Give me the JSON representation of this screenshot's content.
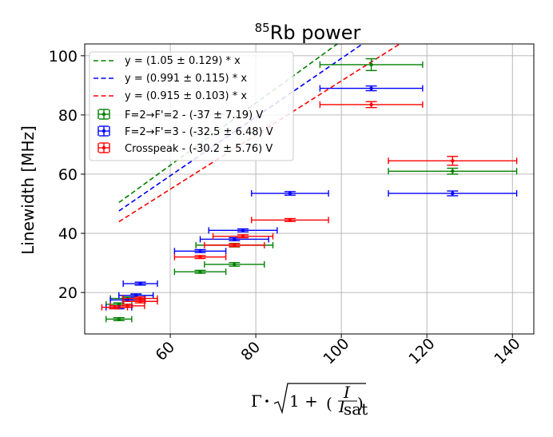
{
  "chart_data": {
    "type": "scatter",
    "title_super": "85",
    "title_main": "Rb power",
    "xlabel": "Γ · √(1 + (I/I_sat))",
    "ylabel": "Linewidth [MHz]",
    "xlim": [
      40,
      145
    ],
    "ylim": [
      6,
      104
    ],
    "x_ticks": [
      60,
      80,
      100,
      120,
      140
    ],
    "y_ticks": [
      20,
      40,
      60,
      80,
      100
    ],
    "grid": true,
    "legend_position": "top-left",
    "fits": [
      {
        "label": "y = (1.05 ± 0.129) * x",
        "slope": 1.05,
        "x_range": [
          48,
          126
        ],
        "color": "#008000"
      },
      {
        "label": "y = (0.991 ± 0.115) * x",
        "slope": 0.991,
        "x_range": [
          48,
          126
        ],
        "color": "#0000ff"
      },
      {
        "label": "y = (0.915 ± 0.103) * x",
        "slope": 0.915,
        "x_range": [
          48,
          126
        ],
        "color": "#ff0000"
      }
    ],
    "series": [
      {
        "label": "F=2→F'=2 - (-37 ± 7.19) V",
        "color": "#008000",
        "points": [
          {
            "x": 107,
            "y": 97,
            "xerr": 12,
            "yerr": 2
          },
          {
            "x": 126,
            "y": 61,
            "xerr": 15,
            "yerr": 1
          },
          {
            "x": 75,
            "y": 36,
            "xerr": 9,
            "yerr": 0.6
          },
          {
            "x": 75,
            "y": 29.5,
            "xerr": 7,
            "yerr": 0.6
          },
          {
            "x": 67,
            "y": 27,
            "xerr": 6,
            "yerr": 0.5
          },
          {
            "x": 52,
            "y": 19,
            "xerr": 4,
            "yerr": 0.5
          },
          {
            "x": 50,
            "y": 18,
            "xerr": 4,
            "yerr": 0.5
          },
          {
            "x": 48,
            "y": 16,
            "xerr": 3,
            "yerr": 0.5
          },
          {
            "x": 48,
            "y": 11,
            "xerr": 3,
            "yerr": 0.5
          }
        ]
      },
      {
        "label": "F=2→F'=3 - (-32.5 ± 6.48) V",
        "color": "#0000ff",
        "points": [
          {
            "x": 107,
            "y": 89,
            "xerr": 12,
            "yerr": 0.8
          },
          {
            "x": 126,
            "y": 53.5,
            "xerr": 15,
            "yerr": 0.8
          },
          {
            "x": 88,
            "y": 53.5,
            "xerr": 9,
            "yerr": 0.6
          },
          {
            "x": 77,
            "y": 41,
            "xerr": 8,
            "yerr": 0.5
          },
          {
            "x": 75,
            "y": 38,
            "xerr": 8,
            "yerr": 0.5
          },
          {
            "x": 67,
            "y": 34,
            "xerr": 6,
            "yerr": 0.5
          },
          {
            "x": 53,
            "y": 23,
            "xerr": 4,
            "yerr": 0.5
          },
          {
            "x": 52,
            "y": 19,
            "xerr": 4,
            "yerr": 0.5
          },
          {
            "x": 50,
            "y": 17.5,
            "xerr": 4,
            "yerr": 0.5
          },
          {
            "x": 48,
            "y": 15,
            "xerr": 3,
            "yerr": 0.5
          }
        ]
      },
      {
        "label": "Crosspeak - (-30.2 ± 5.76) V",
        "color": "#ff0000",
        "points": [
          {
            "x": 107,
            "y": 83.5,
            "xerr": 12,
            "yerr": 1
          },
          {
            "x": 126,
            "y": 64.5,
            "xerr": 15,
            "yerr": 1.5
          },
          {
            "x": 88,
            "y": 44.5,
            "xerr": 9,
            "yerr": 0.5
          },
          {
            "x": 77,
            "y": 39,
            "xerr": 7,
            "yerr": 0.5
          },
          {
            "x": 75,
            "y": 36,
            "xerr": 7,
            "yerr": 0.5
          },
          {
            "x": 67,
            "y": 32,
            "xerr": 6,
            "yerr": 0.5
          },
          {
            "x": 53,
            "y": 18,
            "xerr": 4,
            "yerr": 0.5
          },
          {
            "x": 53,
            "y": 17,
            "xerr": 4,
            "yerr": 0.5
          },
          {
            "x": 50,
            "y": 15.5,
            "xerr": 4,
            "yerr": 0.5
          },
          {
            "x": 47,
            "y": 15,
            "xerr": 3,
            "yerr": 0.5
          }
        ]
      }
    ]
  }
}
